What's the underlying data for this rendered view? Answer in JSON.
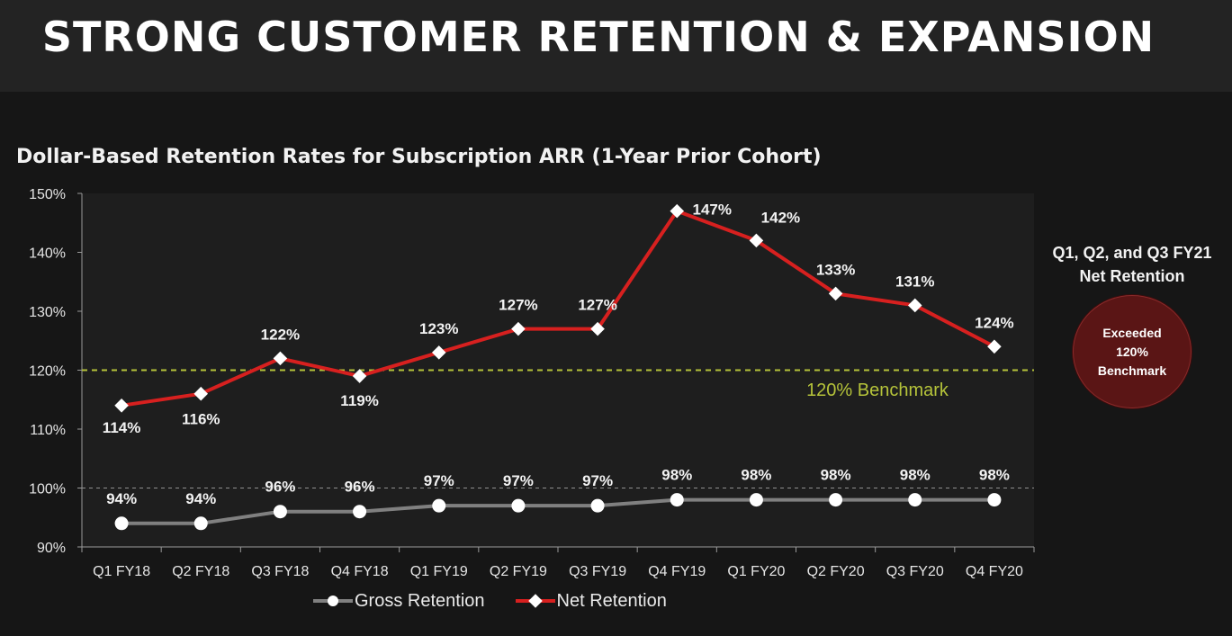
{
  "page": {
    "title": "STRONG CUSTOMER RETENTION & EXPANSION"
  },
  "sidebar": {
    "title": "Q1, Q2, and Q3 FY21\nNet Retention",
    "badge": "Exceeded\n120%\nBenchmark"
  },
  "colors": {
    "net": "#d7201f",
    "gross": "#808080",
    "benchmark": "#b5c33a",
    "grid": "#9a9a9a"
  },
  "chart_data": {
    "type": "line",
    "title": "Dollar-Based Retention Rates for Subscription ARR (1-Year Prior Cohort)",
    "categories": [
      "Q1 FY18",
      "Q2 FY18",
      "Q3 FY18",
      "Q4 FY18",
      "Q1 FY19",
      "Q2 FY19",
      "Q3 FY19",
      "Q4 FY19",
      "Q1 FY20",
      "Q2 FY20",
      "Q3 FY20",
      "Q4 FY20"
    ],
    "ylim": [
      90,
      150
    ],
    "yticks": [
      "90%",
      "100%",
      "110%",
      "120%",
      "130%",
      "140%",
      "150%"
    ],
    "series": [
      {
        "name": "Gross Retention",
        "values": [
          94,
          94,
          96,
          96,
          97,
          97,
          97,
          98,
          98,
          98,
          98,
          98
        ],
        "labels": [
          "94%",
          "94%",
          "96%",
          "96%",
          "97%",
          "97%",
          "97%",
          "98%",
          "98%",
          "98%",
          "98%",
          "98%"
        ]
      },
      {
        "name": "Net Retention",
        "values": [
          114,
          116,
          122,
          119,
          123,
          127,
          127,
          147,
          142,
          133,
          131,
          124
        ],
        "labels": [
          "114%",
          "116%",
          "122%",
          "119%",
          "123%",
          "127%",
          "127%",
          "147%",
          "142%",
          "133%",
          "131%",
          "124%"
        ]
      }
    ],
    "benchmark": {
      "value": 120,
      "label": "120% Benchmark"
    },
    "reference_line": 100,
    "legend": "bottom"
  }
}
